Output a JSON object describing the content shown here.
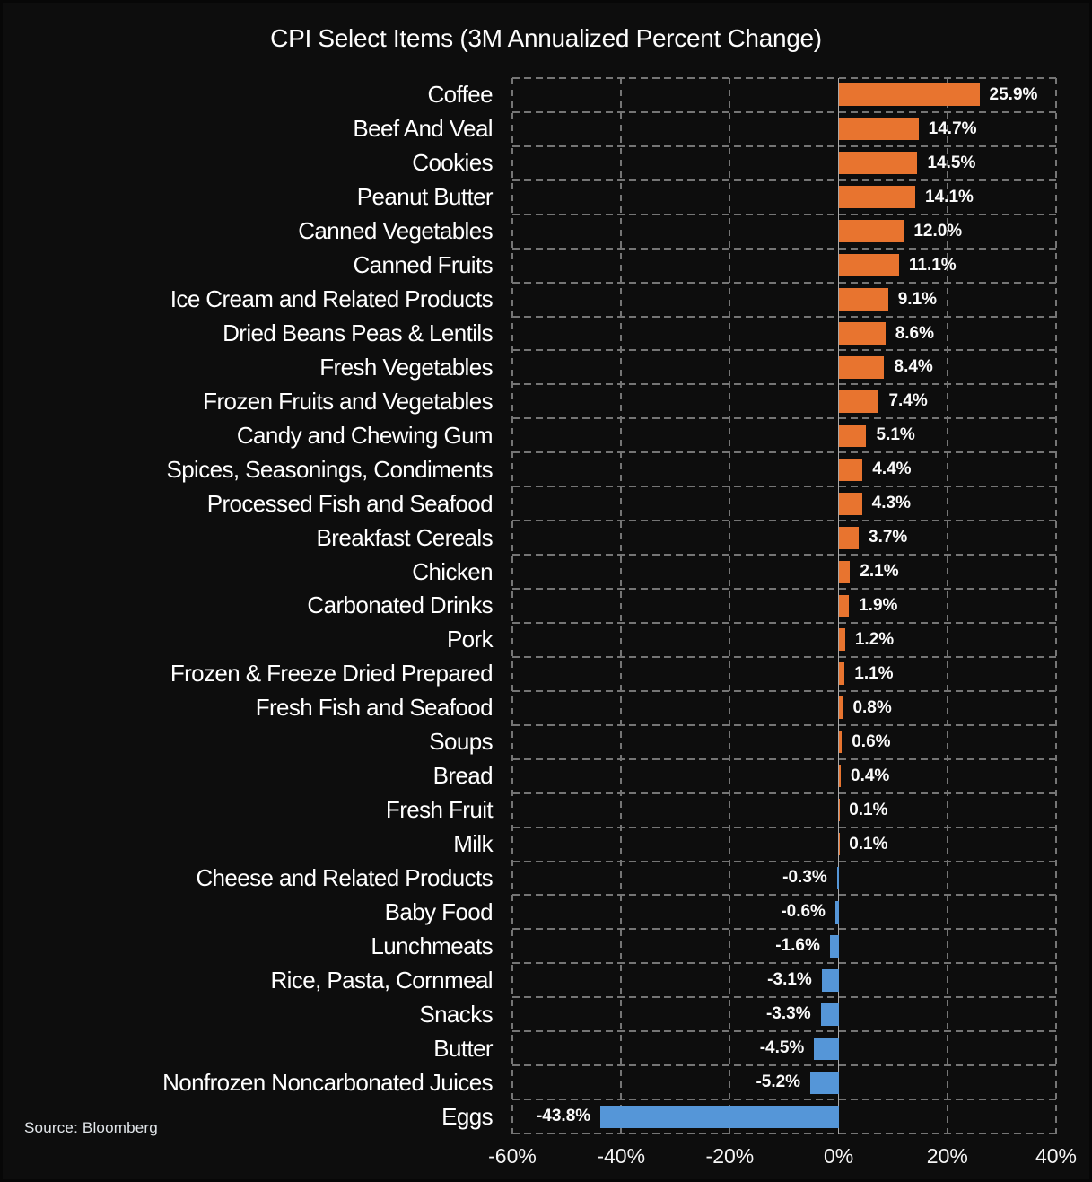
{
  "header": {
    "title": "CPI Select Items (3M Annualized Percent Change)"
  },
  "footer": {
    "source": "Source: Bloomberg"
  },
  "chart_data": {
    "type": "bar",
    "orientation": "horizontal",
    "title": "CPI Select Items (3M Annualized Percent Change)",
    "xlabel": "",
    "ylabel": "",
    "xlim": [
      -60,
      40
    ],
    "x_ticks": [
      -60,
      -40,
      -20,
      0,
      20,
      40
    ],
    "x_tick_labels": [
      "-60%",
      "-40%",
      "-20%",
      "0%",
      "20%",
      "40%"
    ],
    "grid": "dashed-box-with-row-and-tick-lines",
    "legend": "none",
    "categories": [
      "Coffee",
      "Beef And Veal",
      "Cookies",
      "Peanut Butter",
      "Canned Vegetables",
      "Canned Fruits",
      "Ice Cream and Related Products",
      "Dried Beans Peas & Lentils",
      "Fresh Vegetables",
      "Frozen Fruits and Vegetables",
      "Candy and Chewing Gum",
      "Spices, Seasonings, Condiments",
      "Processed Fish and Seafood",
      "Breakfast Cereals",
      "Chicken",
      "Carbonated Drinks",
      "Pork",
      "Frozen & Freeze Dried Prepared",
      "Fresh Fish and Seafood",
      "Soups",
      "Bread",
      "Fresh Fruit",
      "Milk",
      "Cheese and Related Products",
      "Baby Food",
      "Lunchmeats",
      "Rice, Pasta, Cornmeal",
      "Snacks",
      "Butter",
      "Nonfrozen Noncarbonated Juices",
      "Eggs"
    ],
    "values": [
      25.9,
      14.7,
      14.5,
      14.1,
      12.0,
      11.1,
      9.1,
      8.6,
      8.4,
      7.4,
      5.1,
      4.4,
      4.3,
      3.7,
      2.1,
      1.9,
      1.2,
      1.1,
      0.8,
      0.6,
      0.4,
      0.1,
      0.1,
      -0.3,
      -0.6,
      -1.6,
      -3.1,
      -3.3,
      -4.5,
      -5.2,
      -43.8
    ],
    "value_labels": [
      "25.9%",
      "14.7%",
      "14.5%",
      "14.1%",
      "12.0%",
      "11.1%",
      "9.1%",
      "8.6%",
      "8.4%",
      "7.4%",
      "5.1%",
      "4.4%",
      "4.3%",
      "3.7%",
      "2.1%",
      "1.9%",
      "1.2%",
      "1.1%",
      "0.8%",
      "0.6%",
      "0.4%",
      "0.1%",
      "0.1%",
      "-0.3%",
      "-0.6%",
      "-1.6%",
      "-3.1%",
      "-3.3%",
      "-4.5%",
      "-5.2%",
      "-43.8%"
    ],
    "colors": {
      "positive_bar": "#E8742F",
      "negative_bar": "#5596D8",
      "background": "#0D0D0D",
      "gridline": "#757575",
      "zero_line": "#A8A8A8",
      "text": "#FFFFFF"
    }
  }
}
